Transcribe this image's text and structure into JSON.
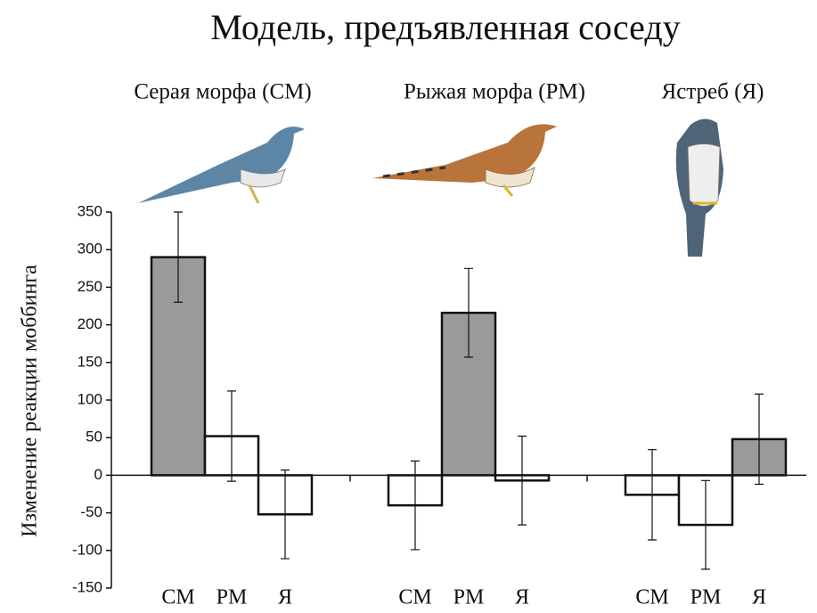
{
  "chart_data": {
    "type": "bar",
    "title": "Модель, предъявленная соседу",
    "y_label": "Изменение реакции моббинга",
    "categories": [
      "Серая морфа (СМ)",
      "Рыжая морфа (РМ)",
      "Ястреб (Я)"
    ],
    "series": [
      {
        "name": "СМ",
        "colors": [
          "#9a9a9a",
          "#ffffff",
          "#ffffff"
        ],
        "values": [
          290,
          -40,
          -26
        ],
        "errors": [
          60,
          59,
          60
        ]
      },
      {
        "name": "РМ",
        "colors": [
          "#ffffff",
          "#9a9a9a",
          "#ffffff"
        ],
        "values": [
          52,
          216,
          -66
        ],
        "errors": [
          60,
          59,
          59
        ]
      },
      {
        "name": "Я",
        "colors": [
          "#ffffff",
          "#ffffff",
          "#9a9a9a"
        ],
        "values": [
          -52,
          -7,
          48
        ],
        "errors": [
          59,
          59,
          60
        ]
      }
    ],
    "ylim": [
      -150,
      350
    ],
    "yticks": [
      -150,
      -100,
      -50,
      0,
      50,
      100,
      150,
      200,
      250,
      300,
      350
    ]
  }
}
